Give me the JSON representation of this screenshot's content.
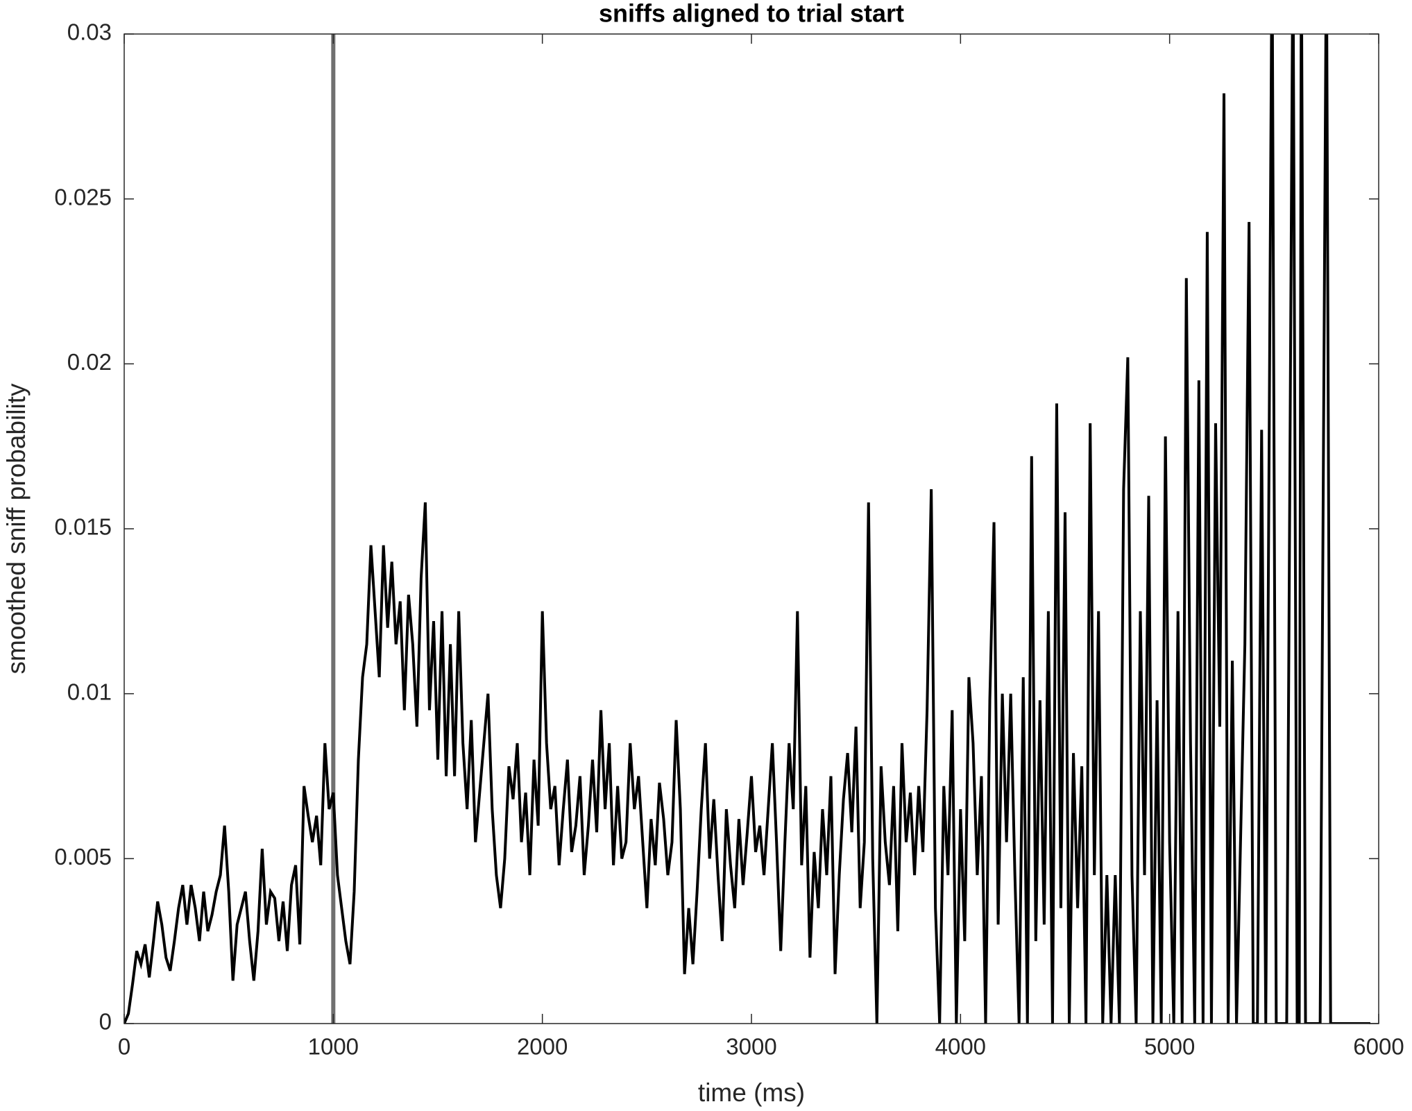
{
  "chart_data": {
    "type": "line",
    "title": "sniffs aligned to trial start",
    "x_label": "time (ms)",
    "y_label": "smoothed sniff probability",
    "xlim": [
      0,
      6000
    ],
    "xticks": [
      0,
      1000,
      2000,
      3000,
      4000,
      5000,
      6000
    ],
    "ylim": [
      0,
      0.03
    ],
    "yticks": [
      0,
      0.005,
      0.01,
      0.015,
      0.02,
      0.025,
      0.03
    ],
    "grid": false,
    "vlines": [
      {
        "x": 1000,
        "color": "#707070"
      }
    ],
    "x": [
      0,
      20,
      40,
      60,
      80,
      100,
      120,
      140,
      160,
      180,
      200,
      220,
      240,
      260,
      280,
      300,
      320,
      340,
      360,
      380,
      400,
      420,
      440,
      460,
      480,
      500,
      520,
      540,
      560,
      580,
      600,
      620,
      640,
      660,
      680,
      700,
      720,
      740,
      760,
      780,
      800,
      820,
      840,
      860,
      880,
      900,
      920,
      940,
      960,
      980,
      1000,
      1020,
      1040,
      1060,
      1080,
      1100,
      1120,
      1140,
      1160,
      1180,
      1200,
      1220,
      1240,
      1260,
      1280,
      1300,
      1320,
      1340,
      1360,
      1380,
      1400,
      1420,
      1440,
      1460,
      1480,
      1500,
      1520,
      1540,
      1560,
      1580,
      1600,
      1620,
      1640,
      1660,
      1680,
      1700,
      1720,
      1740,
      1760,
      1780,
      1800,
      1820,
      1840,
      1860,
      1880,
      1900,
      1920,
      1940,
      1960,
      1980,
      2000,
      2020,
      2040,
      2060,
      2080,
      2100,
      2120,
      2140,
      2160,
      2180,
      2200,
      2220,
      2240,
      2260,
      2280,
      2300,
      2320,
      2340,
      2360,
      2380,
      2400,
      2420,
      2440,
      2460,
      2480,
      2500,
      2520,
      2540,
      2560,
      2580,
      2600,
      2620,
      2640,
      2660,
      2680,
      2700,
      2720,
      2740,
      2760,
      2780,
      2800,
      2820,
      2840,
      2860,
      2880,
      2900,
      2920,
      2940,
      2960,
      2980,
      3000,
      3020,
      3040,
      3060,
      3080,
      3100,
      3120,
      3140,
      3160,
      3180,
      3200,
      3220,
      3240,
      3260,
      3280,
      3300,
      3320,
      3340,
      3360,
      3380,
      3400,
      3420,
      3440,
      3460,
      3480,
      3500,
      3520,
      3540,
      3560,
      3580,
      3600,
      3620,
      3640,
      3660,
      3680,
      3700,
      3720,
      3740,
      3760,
      3780,
      3800,
      3820,
      3840,
      3860,
      3880,
      3900,
      3920,
      3940,
      3960,
      3980,
      4000,
      4020,
      4040,
      4060,
      4080,
      4100,
      4120,
      4140,
      4160,
      4180,
      4200,
      4220,
      4240,
      4260,
      4280,
      4300,
      4320,
      4340,
      4360,
      4380,
      4400,
      4420,
      4440,
      4460,
      4480,
      4500,
      4520,
      4540,
      4560,
      4580,
      4600,
      4620,
      4640,
      4660,
      4680,
      4700,
      4720,
      4740,
      4760,
      4780,
      4800,
      4820,
      4840,
      4860,
      4880,
      4900,
      4920,
      4940,
      4960,
      4980,
      5000,
      5020,
      5040,
      5060,
      5080,
      5100,
      5120,
      5140,
      5160,
      5180,
      5200,
      5220,
      5240,
      5260,
      5280,
      5300,
      5320,
      5360,
      5380,
      5400,
      5420,
      5440,
      5460,
      5490,
      5510,
      5560,
      5590,
      5610,
      5620,
      5630,
      5650,
      5720,
      5750,
      5770,
      5960
    ],
    "series": [
      {
        "name": "smoothed sniff probability",
        "color": "#000000",
        "values": [
          0,
          0.0003,
          0.0012,
          0.0022,
          0.0018,
          0.0024,
          0.0014,
          0.0025,
          0.0037,
          0.003,
          0.002,
          0.0016,
          0.0025,
          0.0035,
          0.0042,
          0.003,
          0.0042,
          0.0035,
          0.0025,
          0.004,
          0.0028,
          0.0033,
          0.004,
          0.0045,
          0.006,
          0.004,
          0.0013,
          0.003,
          0.0035,
          0.004,
          0.0025,
          0.0013,
          0.0028,
          0.0053,
          0.003,
          0.004,
          0.0038,
          0.0025,
          0.0037,
          0.0022,
          0.0042,
          0.0048,
          0.0024,
          0.0072,
          0.0063,
          0.0055,
          0.0063,
          0.0048,
          0.0085,
          0.0065,
          0.007,
          0.0045,
          0.0035,
          0.0025,
          0.0018,
          0.004,
          0.008,
          0.0105,
          0.0115,
          0.0145,
          0.0125,
          0.0105,
          0.0145,
          0.012,
          0.014,
          0.0115,
          0.0128,
          0.0095,
          0.013,
          0.0115,
          0.009,
          0.0135,
          0.0158,
          0.0095,
          0.0122,
          0.008,
          0.0125,
          0.0075,
          0.0115,
          0.0075,
          0.0125,
          0.0085,
          0.0065,
          0.0092,
          0.0055,
          0.007,
          0.0085,
          0.01,
          0.0065,
          0.0045,
          0.0035,
          0.005,
          0.0078,
          0.0068,
          0.0085,
          0.0055,
          0.007,
          0.0045,
          0.008,
          0.006,
          0.0125,
          0.0085,
          0.0065,
          0.0072,
          0.0048,
          0.0065,
          0.008,
          0.0052,
          0.006,
          0.0075,
          0.0045,
          0.006,
          0.008,
          0.0058,
          0.0095,
          0.0065,
          0.0085,
          0.0048,
          0.0072,
          0.005,
          0.0055,
          0.0085,
          0.0065,
          0.0075,
          0.0055,
          0.0035,
          0.0062,
          0.0048,
          0.0073,
          0.0062,
          0.0045,
          0.0055,
          0.0092,
          0.0065,
          0.0015,
          0.0035,
          0.0018,
          0.004,
          0.0065,
          0.0085,
          0.005,
          0.0068,
          0.0045,
          0.0025,
          0.0065,
          0.0048,
          0.0035,
          0.0062,
          0.0042,
          0.0058,
          0.0075,
          0.0052,
          0.006,
          0.0045,
          0.0065,
          0.0085,
          0.0055,
          0.0022,
          0.0055,
          0.0085,
          0.0065,
          0.0125,
          0.0048,
          0.0072,
          0.002,
          0.0052,
          0.0035,
          0.0065,
          0.0045,
          0.0075,
          0.0015,
          0.0045,
          0.0068,
          0.0082,
          0.0058,
          0.009,
          0.0035,
          0.0055,
          0.0158,
          0.005,
          0,
          0.0078,
          0.0055,
          0.0042,
          0.0072,
          0.0028,
          0.0085,
          0.0055,
          0.007,
          0.0045,
          0.0072,
          0.0052,
          0.0095,
          0.0162,
          0.0035,
          0,
          0.0072,
          0.0045,
          0.0095,
          0,
          0.0065,
          0.0025,
          0.0105,
          0.0085,
          0.0045,
          0.0075,
          0,
          0.0098,
          0.0152,
          0.003,
          0.01,
          0.0055,
          0.01,
          0.0045,
          0,
          0.0105,
          0,
          0.0172,
          0.0025,
          0.0098,
          0.003,
          0.0125,
          0,
          0.0188,
          0.0035,
          0.0155,
          0,
          0.0082,
          0.0035,
          0.0078,
          0,
          0.0182,
          0.0045,
          0.0125,
          0,
          0.0045,
          0,
          0.0045,
          0,
          0.0162,
          0.0202,
          0.0045,
          0,
          0.0125,
          0.0045,
          0.016,
          0,
          0.0098,
          0,
          0.0178,
          0.0055,
          0,
          0.0125,
          0,
          0.0226,
          0.0085,
          0,
          0.0195,
          0,
          0.024,
          0,
          0.0182,
          0.009,
          0.0282,
          0,
          0.011,
          0,
          0.0115,
          0.0243,
          0,
          0,
          0.018,
          0,
          0.033,
          0,
          0,
          0.033,
          0,
          0,
          0.033,
          0,
          0,
          0.033,
          0,
          0
        ]
      }
    ]
  }
}
